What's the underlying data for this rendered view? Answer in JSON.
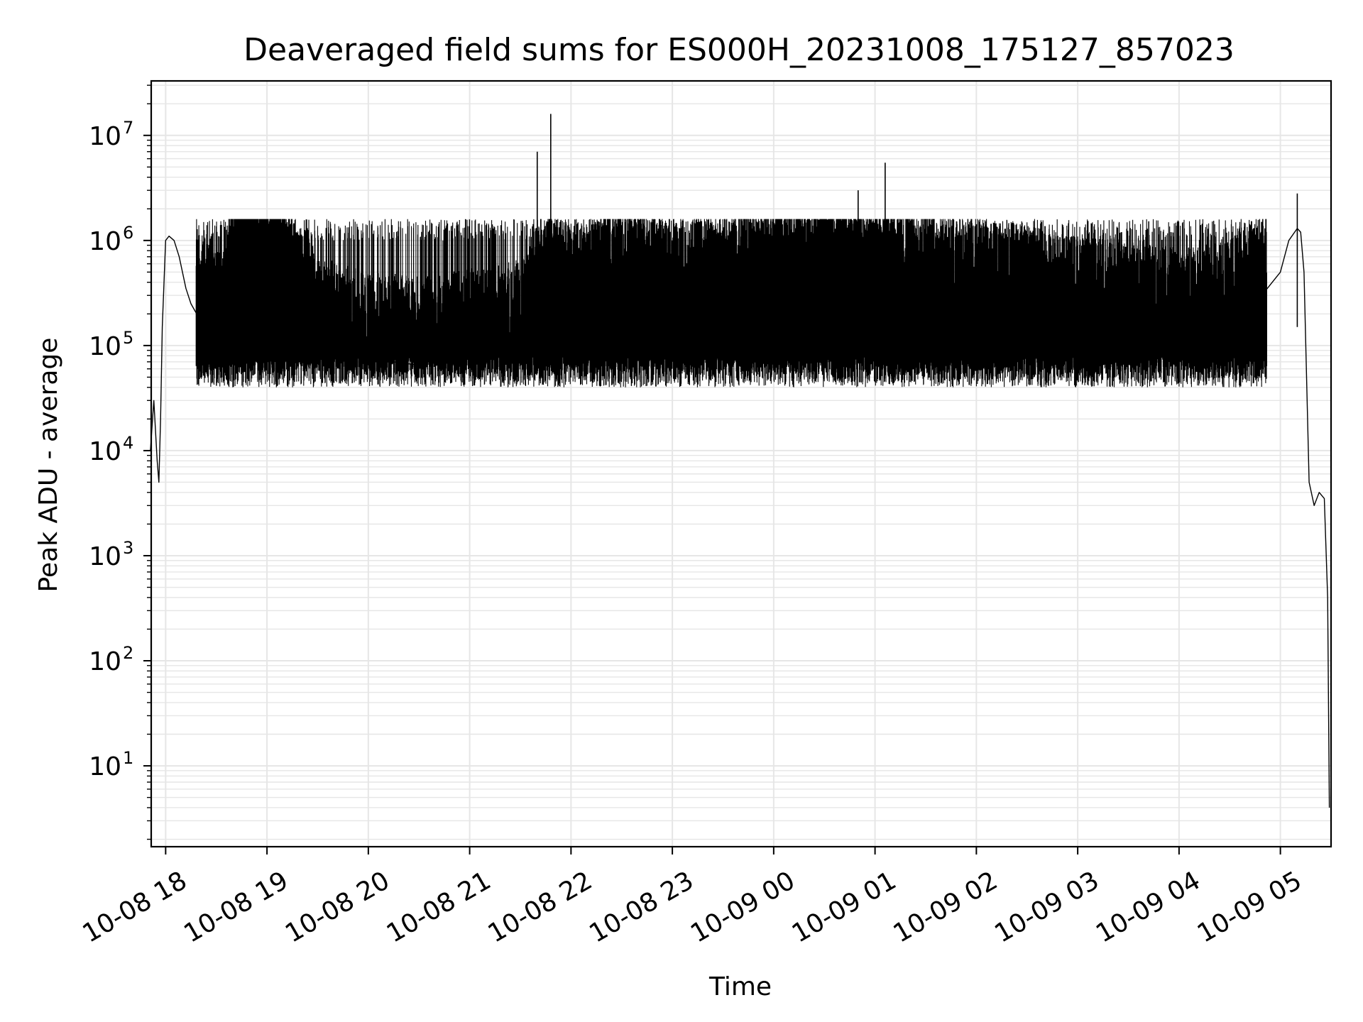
{
  "chart_data": {
    "type": "line",
    "title": "Deaveraged field sums for ES000H_20231008_175127_857023",
    "xlabel": "Time",
    "ylabel": "Peak ADU - average",
    "yscale": "log",
    "ylim": [
      1.7,
      33000000
    ],
    "xlim": [
      "2023-10-08 17:51:27",
      "2023-10-09 05:30:00"
    ],
    "grid": true,
    "line_color": "#000000",
    "grid_color": "#e6e6e6",
    "x_ticks": [
      {
        "time": "2023-10-08 18:00",
        "label": "10-08 18"
      },
      {
        "time": "2023-10-08 19:00",
        "label": "10-08 19"
      },
      {
        "time": "2023-10-08 20:00",
        "label": "10-08 20"
      },
      {
        "time": "2023-10-08 21:00",
        "label": "10-08 21"
      },
      {
        "time": "2023-10-08 22:00",
        "label": "10-08 22"
      },
      {
        "time": "2023-10-08 23:00",
        "label": "10-08 23"
      },
      {
        "time": "2023-10-09 00:00",
        "label": "10-09 00"
      },
      {
        "time": "2023-10-09 01:00",
        "label": "10-09 01"
      },
      {
        "time": "2023-10-09 02:00",
        "label": "10-09 02"
      },
      {
        "time": "2023-10-09 03:00",
        "label": "10-09 03"
      },
      {
        "time": "2023-10-09 04:00",
        "label": "10-09 04"
      },
      {
        "time": "2023-10-09 05:00",
        "label": "10-09 05"
      }
    ],
    "y_ticks": [
      {
        "value": 10,
        "base": "10",
        "exp": "1"
      },
      {
        "value": 100,
        "base": "10",
        "exp": "2"
      },
      {
        "value": 1000,
        "base": "10",
        "exp": "3"
      },
      {
        "value": 10000,
        "base": "10",
        "exp": "4"
      },
      {
        "value": 100000,
        "base": "10",
        "exp": "5"
      },
      {
        "value": 1000000,
        "base": "10",
        "exp": "6"
      },
      {
        "value": 10000000,
        "base": "10",
        "exp": "7"
      }
    ],
    "series": [
      {
        "x": [
          "2023-10-08 17:51",
          "2023-10-08 17:53",
          "2023-10-08 17:55",
          "2023-10-08 17:56",
          "2023-10-08 17:57",
          "2023-10-08 17:58",
          "2023-10-08 18:00",
          "2023-10-08 18:02",
          "2023-10-08 18:05",
          "2023-10-08 18:08",
          "2023-10-08 18:12",
          "2023-10-08 18:15",
          "2023-10-08 18:20",
          "2023-10-08 18:25",
          "2023-10-08 18:30",
          "2023-10-08 18:35",
          "2023-10-08 18:40",
          "2023-10-08 18:45",
          "2023-10-08 18:50",
          "2023-10-08 18:55",
          "2023-10-08 19:00",
          "2023-10-08 19:10",
          "2023-10-08 19:20",
          "2023-10-08 19:30",
          "2023-10-08 19:40",
          "2023-10-08 19:50",
          "2023-10-08 20:00",
          "2023-10-08 20:15",
          "2023-10-08 20:30",
          "2023-10-08 20:45",
          "2023-10-08 21:00",
          "2023-10-08 21:15",
          "2023-10-08 21:30",
          "2023-10-08 21:45",
          "2023-10-08 22:00",
          "2023-10-08 22:30",
          "2023-10-08 23:00",
          "2023-10-08 23:30",
          "2023-10-09 00:00",
          "2023-10-09 00:30",
          "2023-10-09 01:00",
          "2023-10-09 01:30",
          "2023-10-09 02:00",
          "2023-10-09 02:30",
          "2023-10-09 03:00",
          "2023-10-09 03:30",
          "2023-10-09 04:00",
          "2023-10-09 04:15",
          "2023-10-09 04:30",
          "2023-10-09 04:45",
          "2023-10-09 05:00",
          "2023-10-09 05:05",
          "2023-10-09 05:10",
          "2023-10-09 05:12",
          "2023-10-09 05:14",
          "2023-10-09 05:17",
          "2023-10-09 05:20",
          "2023-10-09 05:23",
          "2023-10-09 05:26",
          "2023-10-09 05:28",
          "2023-10-09 05:29"
        ],
        "y": [
          10000,
          30000,
          8000,
          5000,
          20000,
          150000,
          1000000,
          1100000,
          1000000,
          700000,
          350000,
          250000,
          180000,
          140000,
          120000,
          110000,
          900000,
          1000000,
          1000000,
          900000,
          800000,
          400000,
          200000,
          110000,
          90000,
          80000,
          70000,
          70000,
          65000,
          70000,
          80000,
          80000,
          100000,
          300000,
          200000,
          300000,
          250000,
          300000,
          400000,
          500000,
          400000,
          300000,
          250000,
          200000,
          150000,
          150000,
          120000,
          130000,
          150000,
          250000,
          500000,
          1000000,
          1300000,
          1200000,
          500000,
          5000,
          3000,
          4000,
          3500,
          400,
          4
        ]
      }
    ],
    "spikes": [
      {
        "time": "2023-10-08 21:40",
        "value": 7000000
      },
      {
        "time": "2023-10-08 21:48",
        "value": 16000000
      },
      {
        "time": "2023-10-09 00:50",
        "value": 3000000
      },
      {
        "time": "2023-10-09 01:06",
        "value": 5500000
      },
      {
        "time": "2023-10-09 05:10",
        "value": 2800000
      }
    ]
  }
}
